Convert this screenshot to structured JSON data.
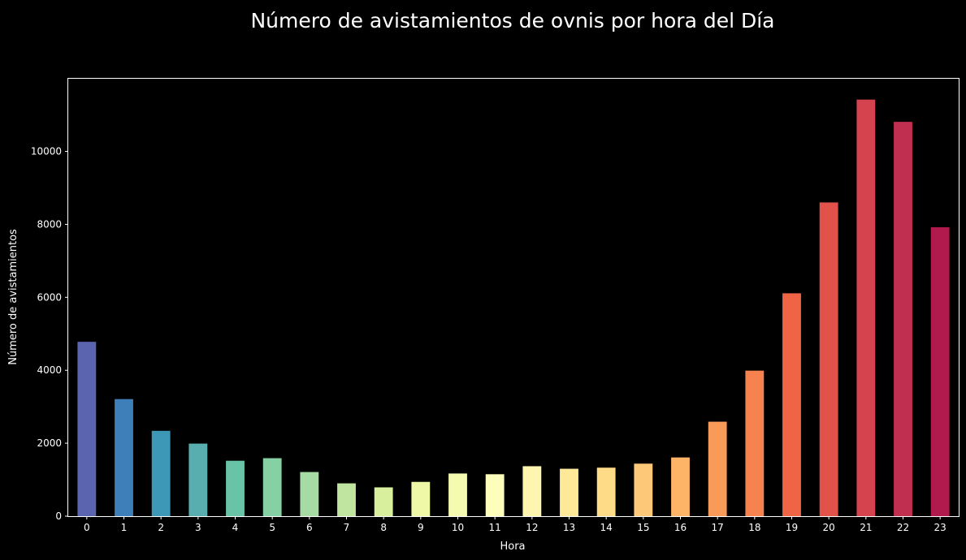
{
  "chart_data": {
    "type": "bar",
    "title": "Número de avistamientos de ovnis por hora del Día",
    "xlabel": "Hora",
    "ylabel": "Número de avistamientos",
    "categories": [
      "0",
      "1",
      "2",
      "3",
      "4",
      "5",
      "6",
      "7",
      "8",
      "9",
      "10",
      "11",
      "12",
      "13",
      "14",
      "15",
      "16",
      "17",
      "18",
      "19",
      "20",
      "21",
      "22",
      "23"
    ],
    "values": [
      4780,
      3210,
      2340,
      1990,
      1520,
      1590,
      1210,
      900,
      790,
      940,
      1170,
      1150,
      1370,
      1300,
      1330,
      1440,
      1610,
      2590,
      3990,
      6110,
      8600,
      11420,
      10810,
      7920
    ],
    "ylim": [
      0,
      11992
    ],
    "yticks": [
      0,
      2000,
      4000,
      6000,
      8000,
      10000
    ],
    "grid": false,
    "legend": "none",
    "background": "#000000",
    "colors": [
      "#5a64af",
      "#3e7eb9",
      "#3d98b8",
      "#58adae",
      "#68c3a7",
      "#86d1a4",
      "#a6dba4",
      "#bfe5a0",
      "#d8ef9e",
      "#eef8a6",
      "#f4fab0",
      "#fdfebc",
      "#fef6b0",
      "#fee999",
      "#fedb87",
      "#fdc877",
      "#fdb466",
      "#fa9a58",
      "#f6824f",
      "#ef6445",
      "#e0524a",
      "#d5434f",
      "#c12f50",
      "#b01a4d"
    ]
  }
}
